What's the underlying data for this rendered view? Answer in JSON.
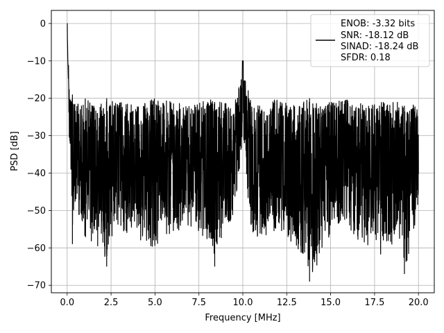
{
  "chart_data": {
    "type": "line",
    "title": "",
    "xlabel": "Frequency [MHz]",
    "ylabel": "PSD [dB]",
    "xlim": [
      -0.9,
      20.9
    ],
    "ylim": [
      -72,
      3.5
    ],
    "grid": true,
    "xticks": [
      0.0,
      2.5,
      5.0,
      7.5,
      10.0,
      12.5,
      15.0,
      17.5,
      20.0
    ],
    "xtick_labels": [
      "0.0",
      "2.5",
      "5.0",
      "7.5",
      "10.0",
      "12.5",
      "15.0",
      "17.5",
      "20.0"
    ],
    "yticks": [
      0,
      -10,
      -20,
      -30,
      -40,
      -50,
      -60,
      -70
    ],
    "ytick_labels": [
      "0",
      "−10",
      "−20",
      "−30",
      "−40",
      "−50",
      "−60",
      "−70"
    ],
    "legend": {
      "placement": "top-right",
      "lines": [
        "ENOB: -3.32 bits",
        "SNR: -18.12 dB",
        "SINAD: -18.24 dB",
        "SFDR: 0.18"
      ]
    },
    "series": [
      {
        "color": "#000000",
        "description": "noise floor fluctuating roughly between -20 and -50 dB across 0-20 MHz, with a spike to 0 dB at 0 MHz and a tone near -10 dB at 10 MHz",
        "x": [
          0.0,
          0.02,
          0.05,
          0.08,
          0.1,
          0.15,
          0.2,
          0.25,
          0.3,
          0.4,
          0.5,
          0.7,
          1.0,
          1.5,
          2.0,
          2.25,
          3.0,
          4.0,
          5.0,
          6.0,
          7.0,
          8.0,
          8.4,
          9.0,
          9.5,
          9.95,
          10.0,
          10.05,
          10.5,
          11.0,
          12.0,
          13.0,
          13.8,
          14.5,
          15.0,
          16.0,
          17.0,
          18.0,
          19.0,
          19.2,
          20.0
        ],
        "y": [
          0,
          -5,
          -8,
          -10,
          -13,
          -15,
          -20,
          -35,
          -59,
          -45,
          -50,
          -48,
          -55,
          -57,
          -50,
          -65,
          -52,
          -55,
          -56,
          -55,
          -52,
          -55,
          -65,
          -50,
          -52,
          -30,
          -10,
          -30,
          -51,
          -55,
          -52,
          -55,
          -69,
          -50,
          -55,
          -52,
          -55,
          -58,
          -55,
          -67,
          -48
        ],
        "upper": [
          0,
          -5,
          -8,
          -10,
          -12,
          -14,
          -17,
          -18,
          -19,
          -21,
          -20,
          -22,
          -19,
          -22,
          -21,
          -20,
          -21,
          -22,
          -20,
          -21,
          -22,
          -20,
          -21,
          -21,
          -22,
          -12,
          -10,
          -12,
          -21,
          -22,
          -20,
          -22,
          -20,
          -22,
          -21,
          -20,
          -22,
          -21,
          -21,
          -22,
          -21
        ],
        "lower": [
          0,
          -8,
          -15,
          -20,
          -28,
          -36,
          -40,
          -50,
          -59,
          -49,
          -52,
          -55,
          -57,
          -59,
          -60,
          -65,
          -55,
          -58,
          -60,
          -56,
          -55,
          -58,
          -65,
          -55,
          -58,
          -35,
          -15,
          -35,
          -60,
          -58,
          -55,
          -60,
          -69,
          -62,
          -57,
          -55,
          -60,
          -62,
          -58,
          -67,
          -50
        ]
      }
    ]
  }
}
